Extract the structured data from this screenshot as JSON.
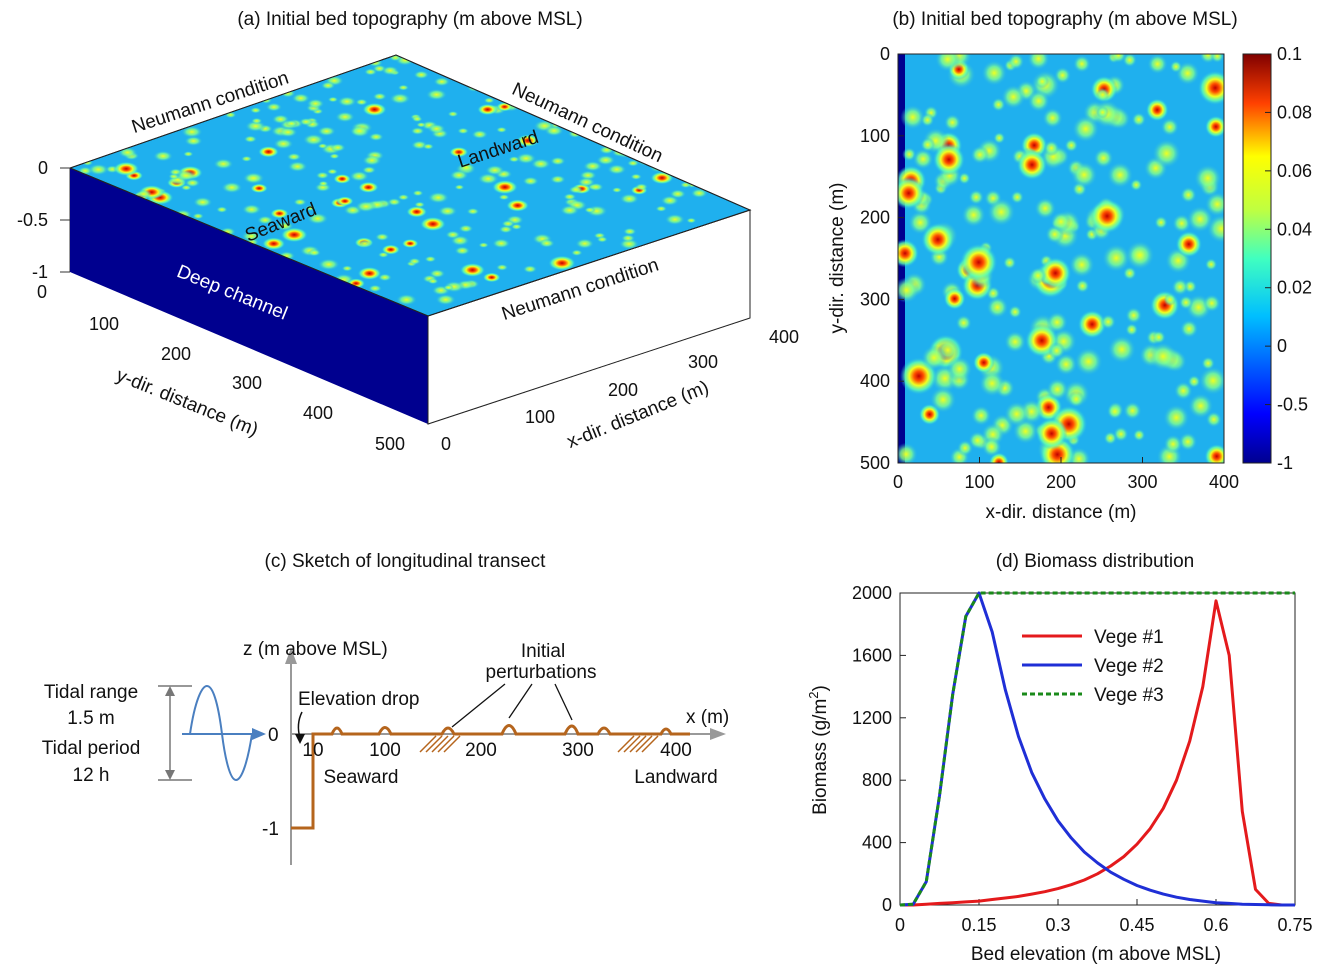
{
  "panel_a": {
    "title": "(a) Initial bed topography (m above MSL)",
    "label_neumann_back": "Neumann condition",
    "label_neumann_right": "Neumann condition",
    "label_neumann_front": "Neumann condition",
    "label_landward": "Landward",
    "label_seaward": "Seaward",
    "label_channel": "Deep channel",
    "z_ticks": [
      "0",
      "-0.5",
      "-1"
    ],
    "y_ticks": [
      "0",
      "100",
      "200",
      "300",
      "400",
      "500"
    ],
    "x_ticks": [
      "0",
      "100",
      "200",
      "300",
      "400"
    ],
    "ylabel": "y-dir. distance (m)",
    "xlabel": "x-dir. distance (m)"
  },
  "panel_c": {
    "title": "(c) Sketch of longitudinal transect",
    "zlabel": "z (m above MSL)",
    "xlabel": "x (m)",
    "tidal_range": "Tidal range",
    "tidal_range_val": "1.5 m",
    "tidal_period": "Tidal period",
    "tidal_period_val": "12 h",
    "elevation_drop": "Elevation drop",
    "initial": "Initial",
    "perturbations": "perturbations",
    "seaward": "Seaward",
    "landward": "Landward",
    "z0": "0",
    "zm1": "-1",
    "x_ticks": [
      "10",
      "100",
      "200",
      "300",
      "400"
    ]
  },
  "colors": {
    "deep_blue": "#00008f",
    "bed_cyan": "#1fb0ee",
    "transect": "#b5651d",
    "vege1": "#e41a1c",
    "vege2": "#1f2fd6",
    "vege3": "#1a8a1a",
    "tide": "#4a7fc0"
  },
  "chart_data": [
    {
      "type": "heatmap",
      "title": "(b) Initial bed topography (m above MSL)",
      "xlabel": "x-dir. distance (m)",
      "ylabel": "y-dir. distance (m)",
      "xlim": [
        0,
        400
      ],
      "ylim": [
        0,
        500
      ],
      "y_reversed": true,
      "x_ticks": [
        "0",
        "100",
        "200",
        "300",
        "400"
      ],
      "y_ticks": [
        "0",
        "100",
        "200",
        "300",
        "400",
        "500"
      ],
      "colorbar_ticks": [
        "0.1",
        "0.08",
        "0.06",
        "0.04",
        "0.02",
        "0",
        "-0.5",
        "-1"
      ],
      "colorbar_range": [
        -1,
        0.1
      ]
    },
    {
      "type": "line",
      "title": "(d) Biomass distribution",
      "xlabel": "Bed elevation (m above MSL)",
      "ylabel_main": "Biomass (g/m",
      "ylabel_sup": "2",
      "ylabel_end": ")",
      "xlim": [
        0,
        0.75
      ],
      "ylim": [
        0,
        2000
      ],
      "x_ticks": [
        "0",
        "0.15",
        "0.3",
        "0.45",
        "0.6",
        "0.75"
      ],
      "y_ticks": [
        "0",
        "400",
        "800",
        "1200",
        "1600",
        "2000"
      ],
      "x": [
        0,
        0.025,
        0.05,
        0.075,
        0.1,
        0.125,
        0.15,
        0.175,
        0.2,
        0.225,
        0.25,
        0.275,
        0.3,
        0.325,
        0.35,
        0.375,
        0.4,
        0.425,
        0.45,
        0.475,
        0.5,
        0.525,
        0.55,
        0.575,
        0.6,
        0.625,
        0.65,
        0.675,
        0.7,
        0.725,
        0.75
      ],
      "series": [
        {
          "name": "Vege #1",
          "values": [
            0,
            0,
            5,
            10,
            15,
            20,
            25,
            35,
            45,
            55,
            70,
            85,
            105,
            130,
            160,
            200,
            250,
            310,
            390,
            490,
            620,
            800,
            1050,
            1400,
            1950,
            1600,
            600,
            100,
            10,
            0,
            0
          ]
        },
        {
          "name": "Vege #2",
          "values": [
            0,
            5,
            150,
            700,
            1350,
            1850,
            2000,
            1750,
            1380,
            1080,
            850,
            680,
            540,
            430,
            340,
            270,
            210,
            165,
            125,
            95,
            70,
            50,
            35,
            25,
            15,
            10,
            5,
            3,
            1,
            0,
            0
          ]
        },
        {
          "name": "Vege #3",
          "values": [
            0,
            5,
            150,
            700,
            1350,
            1850,
            2000,
            2000,
            2000,
            2000,
            2000,
            2000,
            2000,
            2000,
            2000,
            2000,
            2000,
            2000,
            2000,
            2000,
            2000,
            2000,
            2000,
            2000,
            2000,
            2000,
            2000,
            2000,
            2000,
            2000,
            2000
          ]
        }
      ],
      "legend": "top-right"
    }
  ]
}
